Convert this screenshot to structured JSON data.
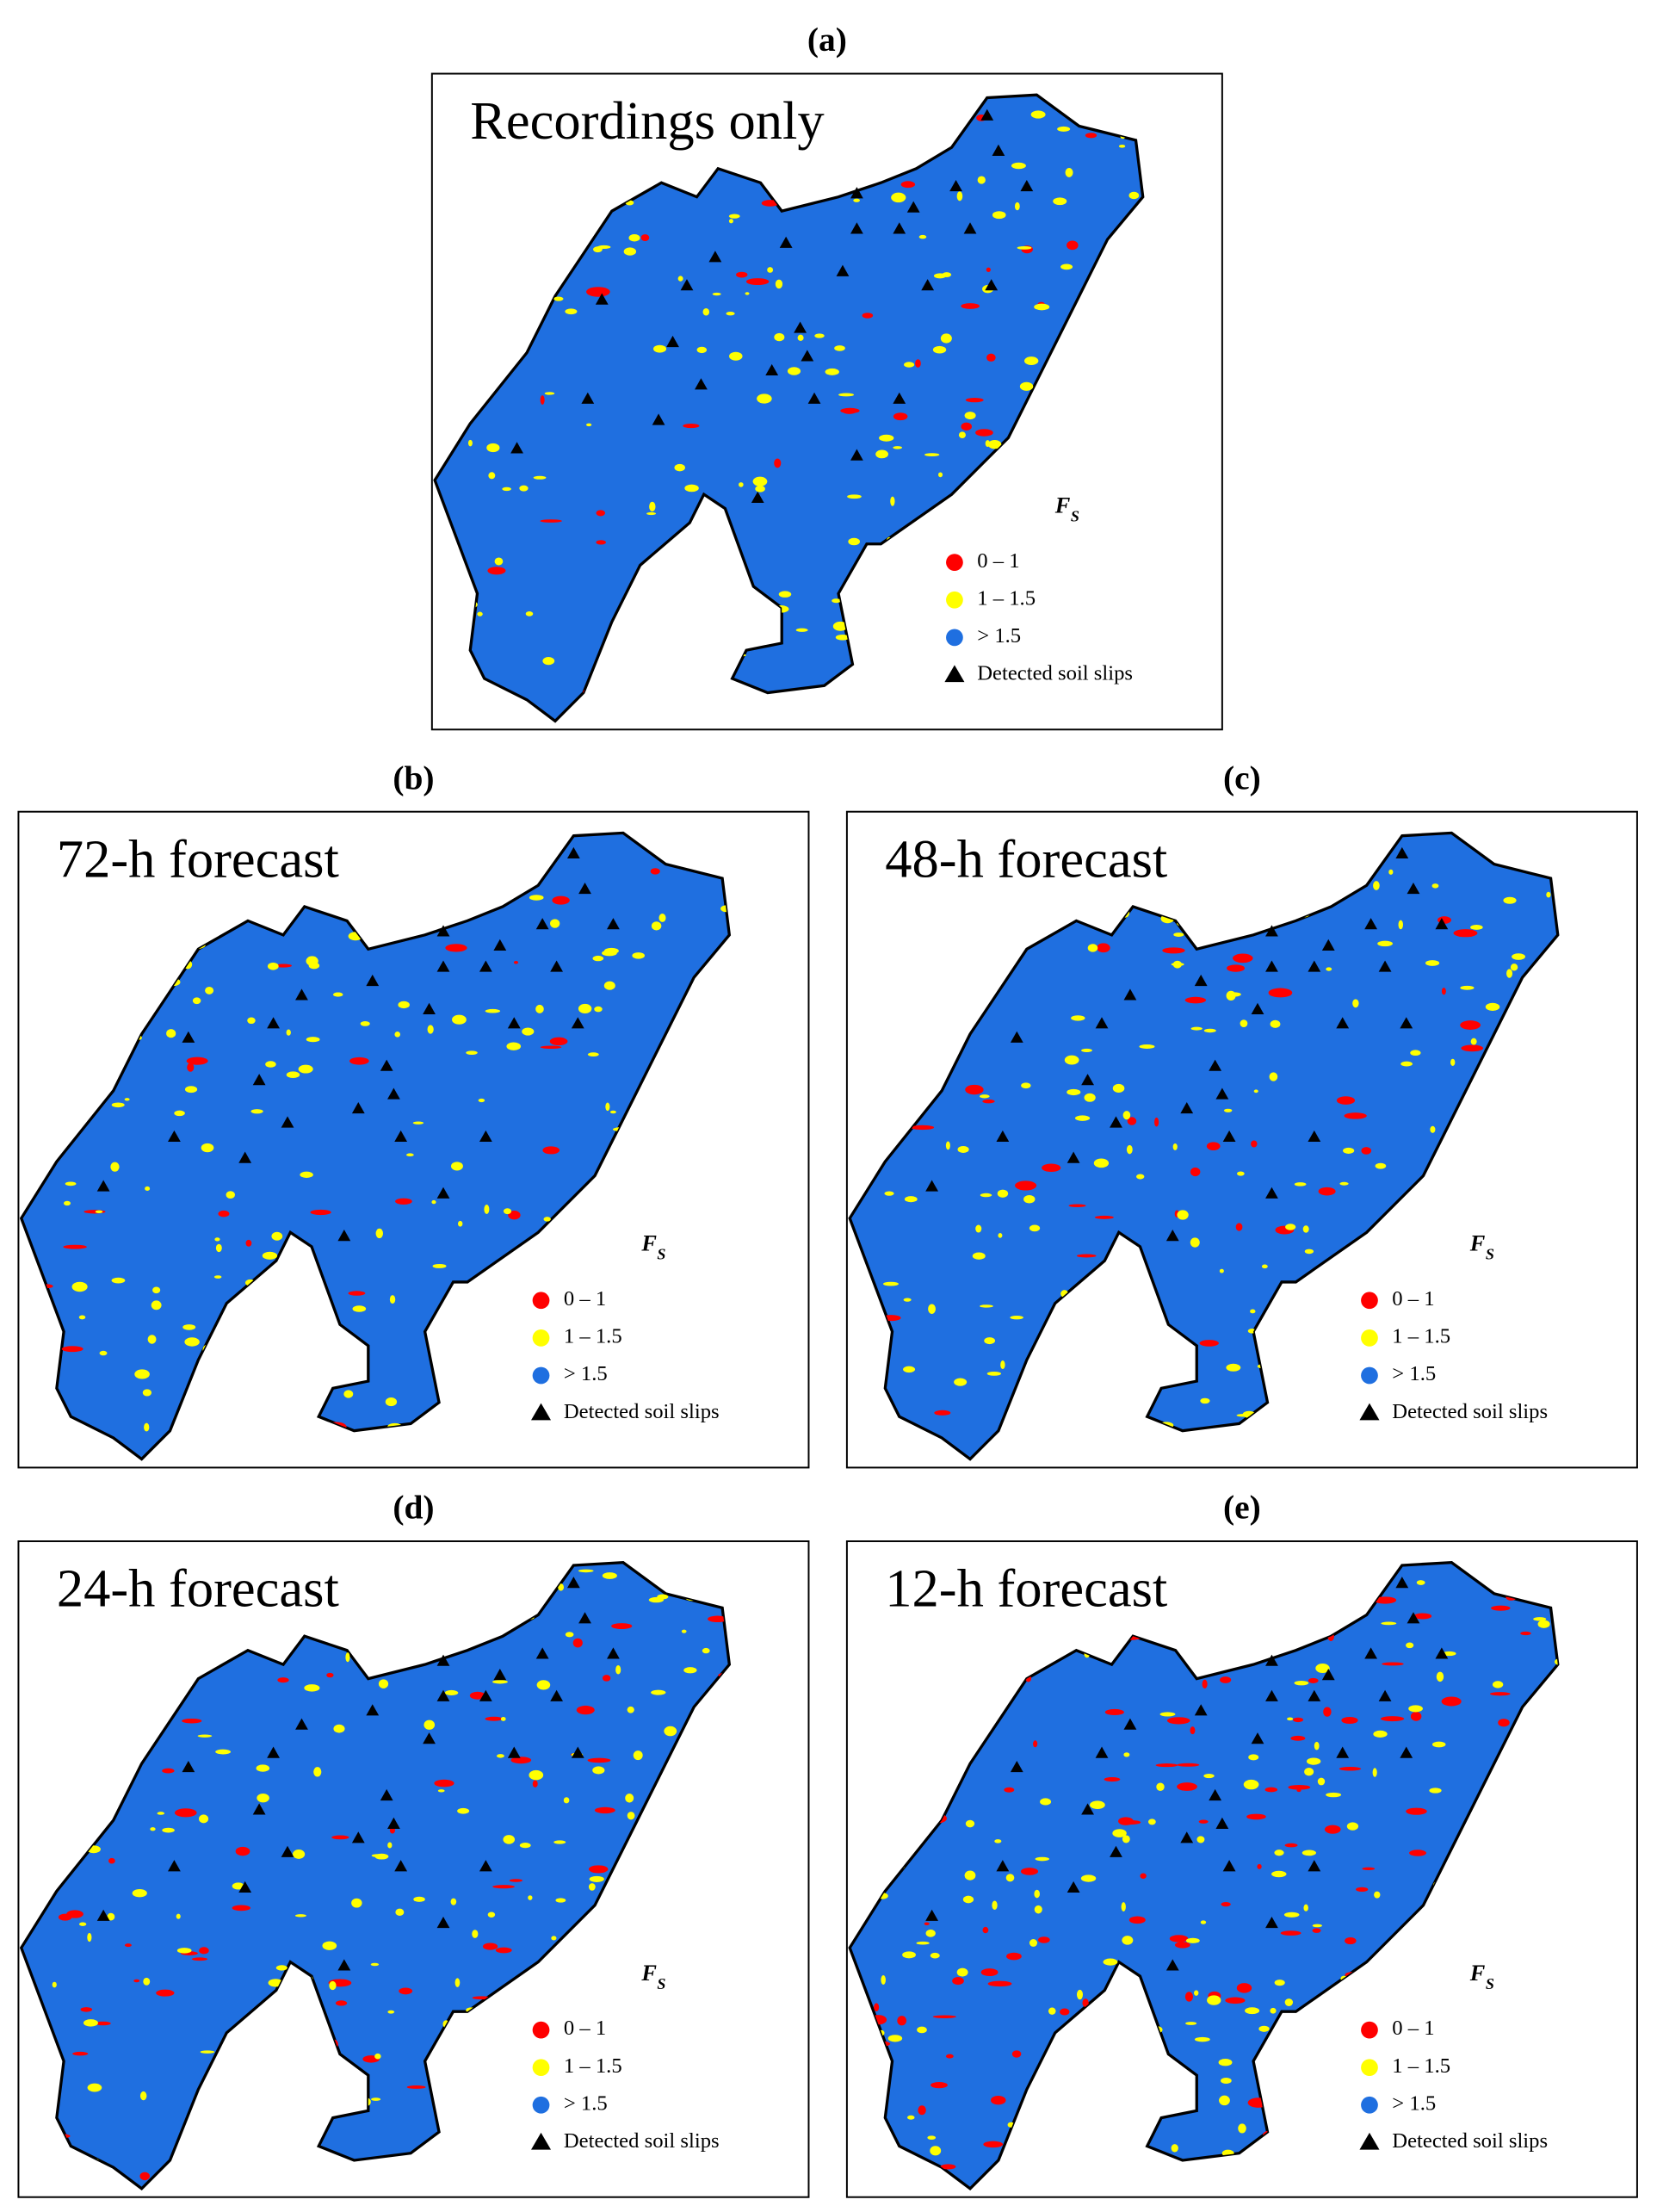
{
  "figure": {
    "panels": [
      {
        "label": "(a)",
        "title": "Recordings only"
      },
      {
        "label": "(b)",
        "title": "72-h forecast"
      },
      {
        "label": "(c)",
        "title": "48-h forecast"
      },
      {
        "label": "(d)",
        "title": "24-h forecast"
      },
      {
        "label": "(e)",
        "title": "12-h forecast"
      }
    ],
    "legend": {
      "title": "F",
      "title_sub": "S",
      "items": [
        "0 – 1",
        "1 – 1.5",
        "> 1.5",
        "Detected soil slips"
      ]
    }
  }
}
